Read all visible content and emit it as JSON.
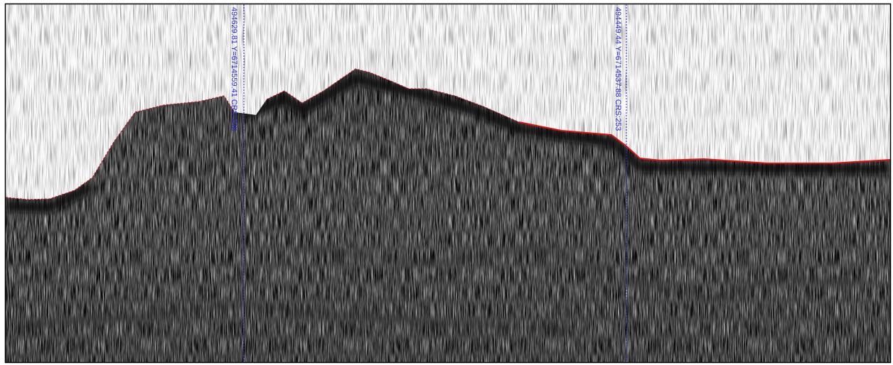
{
  "markers": [
    {
      "label": "494629.81 Y=6714559.41 CRS:248"
    },
    {
      "label": "494449.44 Y=6714537.88 CRS:253"
    }
  ]
}
